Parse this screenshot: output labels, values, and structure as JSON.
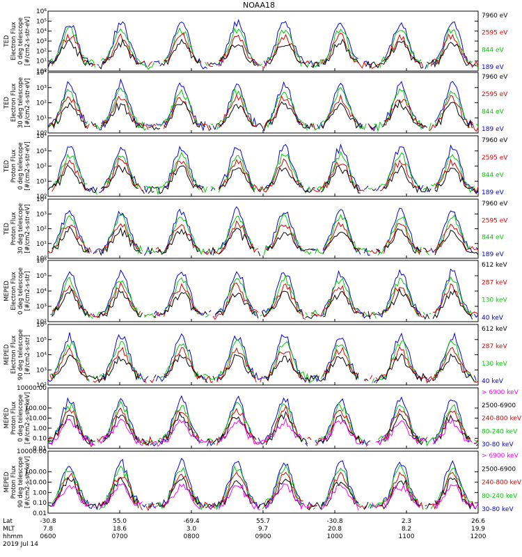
{
  "title": "NOAA18",
  "footer": {
    "rows": [
      {
        "label": "Lat",
        "values": [
          "-30.8",
          "55.0",
          "-69.4",
          "55.7",
          "-30.8",
          "2.3",
          "26.6"
        ]
      },
      {
        "label": "MLT",
        "values": [
          "7.8",
          "18.6",
          "3.0",
          "9.7",
          "20.8",
          "8.2",
          "19.9"
        ]
      },
      {
        "label": "hhmm",
        "values": [
          "0600",
          "0700",
          "0800",
          "0900",
          "1000",
          "1100",
          "1200"
        ]
      }
    ],
    "date": "2019 Jul 14"
  },
  "chart_data": [
    {
      "type": "line",
      "ylabel": [
        "TED",
        "Electron Flux",
        "0 deg telescope",
        "[#/cm2-s-str-eV]"
      ],
      "scale": "log",
      "ylim": [
        1,
        1000000
      ],
      "yticks": [
        {
          "v": 1,
          "t": "10⁰"
        },
        {
          "v": 10,
          "t": "10¹"
        },
        {
          "v": 100,
          "t": "10²"
        },
        {
          "v": 1000,
          "t": "10³"
        },
        {
          "v": 10000,
          "t": "10⁴"
        },
        {
          "v": 100000,
          "t": "10⁵"
        },
        {
          "v": 1000000,
          "t": "10⁶"
        }
      ],
      "legend": [
        {
          "name": "7960 eV",
          "color": "#000000"
        },
        {
          "name": "2595 eV",
          "color": "#dd0000"
        },
        {
          "name": "844 eV",
          "color": "#00cc00"
        },
        {
          "name": "189 eV",
          "color": "#0000dd"
        }
      ],
      "seed": 11
    },
    {
      "type": "line",
      "ylabel": [
        "TED",
        "Electron Flux",
        "30 deg telescope",
        "[#/cm2-s-str-eV]"
      ],
      "scale": "log",
      "ylim": [
        1,
        10000
      ],
      "yticks": [
        {
          "v": 1,
          "t": "10⁰"
        },
        {
          "v": 10,
          "t": "10¹"
        },
        {
          "v": 100,
          "t": "10²"
        },
        {
          "v": 1000,
          "t": "10³"
        },
        {
          "v": 10000,
          "t": "10⁴"
        }
      ],
      "legend": [
        {
          "name": "7960 eV",
          "color": "#000000"
        },
        {
          "name": "2595 eV",
          "color": "#dd0000"
        },
        {
          "name": "844 eV",
          "color": "#00cc00"
        },
        {
          "name": "189 eV",
          "color": "#0000dd"
        }
      ],
      "seed": 23
    },
    {
      "type": "line",
      "ylabel": [
        "TED",
        "Proton Flux",
        "0 deg telescope",
        "[#/cm2-s-str-eV]"
      ],
      "scale": "log",
      "ylim": [
        1,
        10000
      ],
      "yticks": [
        {
          "v": 1,
          "t": "10⁰"
        },
        {
          "v": 10,
          "t": "10¹"
        },
        {
          "v": 100,
          "t": "10²"
        },
        {
          "v": 1000,
          "t": "10³"
        },
        {
          "v": 10000,
          "t": "10⁴"
        }
      ],
      "legend": [
        {
          "name": "7960 eV",
          "color": "#000000"
        },
        {
          "name": "2595 eV",
          "color": "#dd0000"
        },
        {
          "name": "844 eV",
          "color": "#00cc00"
        },
        {
          "name": "189 eV",
          "color": "#0000dd"
        }
      ],
      "seed": 37
    },
    {
      "type": "line",
      "ylabel": [
        "TED",
        "Proton Flux",
        "30 deg telescope",
        "[#/cm2-s-str-eV]"
      ],
      "scale": "log",
      "ylim": [
        1,
        10000
      ],
      "yticks": [
        {
          "v": 1,
          "t": "10⁰"
        },
        {
          "v": 10,
          "t": "10¹"
        },
        {
          "v": 100,
          "t": "10²"
        },
        {
          "v": 1000,
          "t": "10³"
        },
        {
          "v": 10000,
          "t": "10⁴"
        }
      ],
      "legend": [
        {
          "name": "7960 eV",
          "color": "#000000"
        },
        {
          "name": "2595 eV",
          "color": "#dd0000"
        },
        {
          "name": "844 eV",
          "color": "#00cc00"
        },
        {
          "name": "189 eV",
          "color": "#0000dd"
        }
      ],
      "seed": 41
    },
    {
      "type": "line",
      "ylabel": [
        "MEPED",
        "Electron Flux",
        "0 deg telescope",
        "[#/cm2-s-str]"
      ],
      "scale": "log",
      "ylim": [
        100,
        1000000
      ],
      "yticks": [
        {
          "v": 100,
          "t": "10²"
        },
        {
          "v": 1000,
          "t": "10³"
        },
        {
          "v": 10000,
          "t": "10⁴"
        },
        {
          "v": 100000,
          "t": "10⁵"
        },
        {
          "v": 1000000,
          "t": "10⁶"
        }
      ],
      "legend": [
        {
          "name": "612 keV",
          "color": "#000000"
        },
        {
          "name": "287 keV",
          "color": "#dd0000"
        },
        {
          "name": "130 keV",
          "color": "#00cc00"
        },
        {
          "name": "40 keV",
          "color": "#0000dd"
        }
      ],
      "seed": 53
    },
    {
      "type": "line",
      "ylabel": [
        "MEPED",
        "Electron Flux",
        "90 deg telescope",
        "[#/cm2-s-str]"
      ],
      "scale": "log",
      "ylim": [
        100,
        1000000
      ],
      "yticks": [
        {
          "v": 100,
          "t": "10²"
        },
        {
          "v": 1000,
          "t": "10³"
        },
        {
          "v": 10000,
          "t": "10⁴"
        },
        {
          "v": 100000,
          "t": "10⁵"
        },
        {
          "v": 1000000,
          "t": "10⁶"
        }
      ],
      "legend": [
        {
          "name": "612 keV",
          "color": "#000000"
        },
        {
          "name": "287 keV",
          "color": "#dd0000"
        },
        {
          "name": "130 keV",
          "color": "#00cc00"
        },
        {
          "name": "40 keV",
          "color": "#0000dd"
        }
      ],
      "seed": 67
    },
    {
      "type": "line",
      "ylabel": [
        "MEPED",
        "Proton Flux",
        "0 deg telescope",
        "[#/cm2-s-str-keV]"
      ],
      "scale": "log",
      "ylim": [
        0.01,
        10000
      ],
      "yticks": [
        {
          "v": 0.01,
          "t": "0.01"
        },
        {
          "v": 0.1,
          "t": "0.10"
        },
        {
          "v": 1,
          "t": "1.00"
        },
        {
          "v": 10,
          "t": "10.00"
        },
        {
          "v": 100,
          "t": "100.00"
        },
        {
          "v": 10000,
          "t": "10000.00"
        }
      ],
      "legend": [
        {
          "name": "> 6900 keV",
          "color": "#ff00ff"
        },
        {
          "name": "2500-6900",
          "color": "#000000"
        },
        {
          "name": "240-800 keV",
          "color": "#dd0000"
        },
        {
          "name": "80-240 keV",
          "color": "#00cc00"
        },
        {
          "name": "30-80 keV",
          "color": "#0000dd"
        }
      ],
      "seed": 79
    },
    {
      "type": "line",
      "ylabel": [
        "MEPED",
        "Proton Flux",
        "90 deg telescope",
        "[#/cm2-s-str-keV]"
      ],
      "scale": "log",
      "ylim": [
        0.01,
        10000
      ],
      "yticks": [
        {
          "v": 0.01,
          "t": "0.01"
        },
        {
          "v": 0.1,
          "t": "0.10"
        },
        {
          "v": 1,
          "t": "1.00"
        },
        {
          "v": 10,
          "t": "10.00"
        },
        {
          "v": 100,
          "t": "100.00"
        },
        {
          "v": 10000,
          "t": "10000.00"
        }
      ],
      "legend": [
        {
          "name": "> 6900 keV",
          "color": "#ff00ff"
        },
        {
          "name": "2500-6900",
          "color": "#000000"
        },
        {
          "name": "240-800 keV",
          "color": "#dd0000"
        },
        {
          "name": "80-240 keV",
          "color": "#00cc00"
        },
        {
          "name": "30-80 keV",
          "color": "#0000dd"
        }
      ],
      "seed": 97
    }
  ]
}
